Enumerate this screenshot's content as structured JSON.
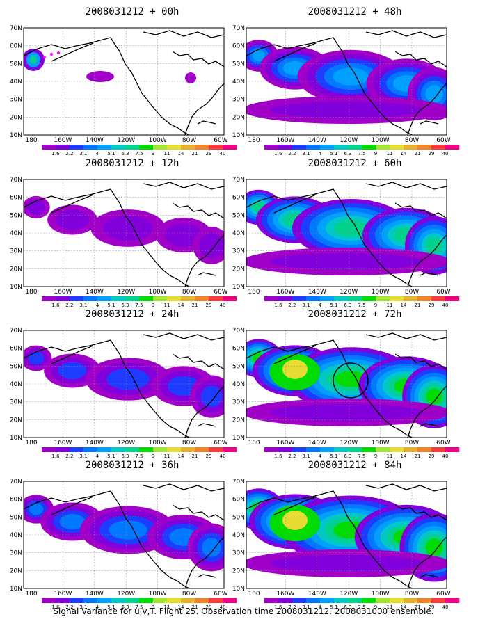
{
  "caption": "Signal Variance for u,v,T. Flight 25. Observation time 2008031212. 2008031000 ensemble.",
  "colorbar": {
    "levels": [
      "1.6",
      "2.2",
      "3.1",
      "4",
      "5.1",
      "6.3",
      "7.5",
      "9",
      "11",
      "14",
      "21",
      "29",
      "40"
    ],
    "colors": [
      "#a000c8",
      "#8200dc",
      "#1e3cff",
      "#0078ff",
      "#00a0ff",
      "#00c8c8",
      "#00d28c",
      "#00dc00",
      "#a0e632",
      "#e6dc32",
      "#e6af2d",
      "#f08228",
      "#fa3c3c",
      "#f00082"
    ]
  },
  "axes": {
    "lat_labels": [
      "70N",
      "60N",
      "50N",
      "40N",
      "30N",
      "20N",
      "10N"
    ],
    "lon_labels": [
      "180",
      "160W",
      "140W",
      "120W",
      "100W",
      "80W",
      "60W"
    ]
  },
  "panels": [
    {
      "title": "2008031212 + 00h",
      "intensity": 0
    },
    {
      "title": "2008031212 + 12h",
      "intensity": 1
    },
    {
      "title": "2008031212 + 24h",
      "intensity": 2
    },
    {
      "title": "2008031212 + 36h",
      "intensity": 3
    },
    {
      "title": "2008031212 + 48h",
      "intensity": 4
    },
    {
      "title": "2008031212 + 60h",
      "intensity": 5
    },
    {
      "title": "2008031212 + 72h",
      "intensity": 6
    },
    {
      "title": "2008031212 + 84h",
      "intensity": 7
    }
  ]
}
